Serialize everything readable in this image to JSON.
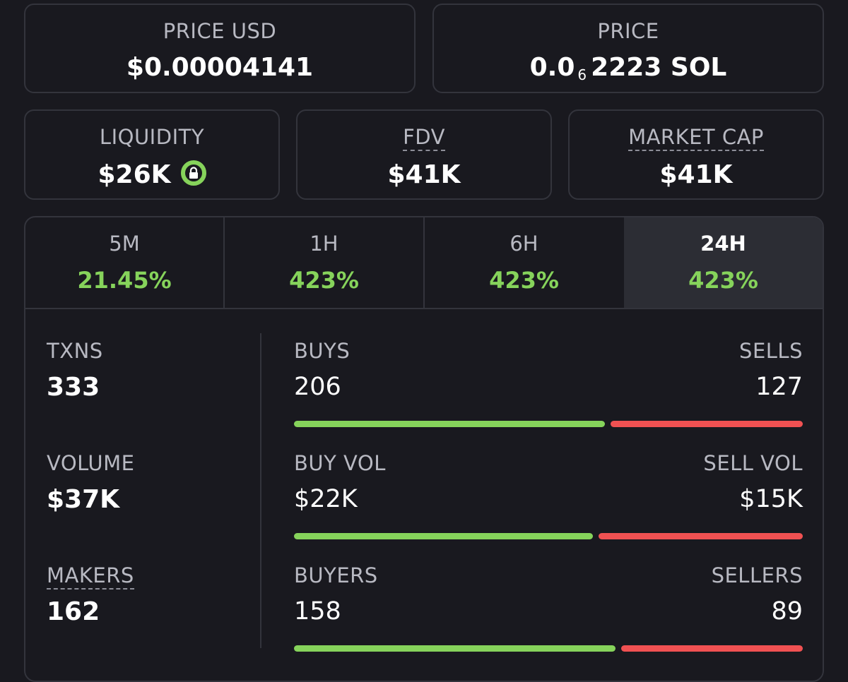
{
  "price_usd": {
    "label": "PRICE USD",
    "value": "$0.00004141"
  },
  "price_native": {
    "label": "PRICE",
    "prefix": "0.0",
    "subscript": "6",
    "digits": "2223",
    "unit": "SOL"
  },
  "liquidity": {
    "label": "LIQUIDITY",
    "value": "$26K",
    "locked_icon": "lock-icon"
  },
  "fdv": {
    "label": "FDV",
    "value": "$41K"
  },
  "market_cap": {
    "label": "MARKET CAP",
    "value": "$41K"
  },
  "tabs": [
    {
      "label": "5M",
      "change": "21.45%"
    },
    {
      "label": "1H",
      "change": "423%"
    },
    {
      "label": "6H",
      "change": "423%"
    },
    {
      "label": "24H",
      "change": "423%",
      "active": true
    }
  ],
  "stats": {
    "txns": {
      "label": "TXNS",
      "value": "333"
    },
    "volume": {
      "label": "VOLUME",
      "value": "$37K"
    },
    "makers": {
      "label": "MAKERS",
      "value": "162"
    }
  },
  "pairs": {
    "txns": {
      "buy_label": "BUYS",
      "sell_label": "SELLS",
      "buy_value": "206",
      "sell_value": "127",
      "buy_count": 206,
      "sell_count": 127
    },
    "volume": {
      "buy_label": "BUY VOL",
      "sell_label": "SELL VOL",
      "buy_value": "$22K",
      "sell_value": "$15K",
      "buy_amount": 22,
      "sell_amount": 15
    },
    "makers": {
      "buy_label": "BUYERS",
      "sell_label": "SELLERS",
      "buy_value": "158",
      "sell_value": "89",
      "buy_count": 158,
      "sell_count": 89
    }
  },
  "colors": {
    "positive": "#86d35b",
    "negative": "#f05152",
    "background": "#19191f",
    "border": "#33343c"
  }
}
